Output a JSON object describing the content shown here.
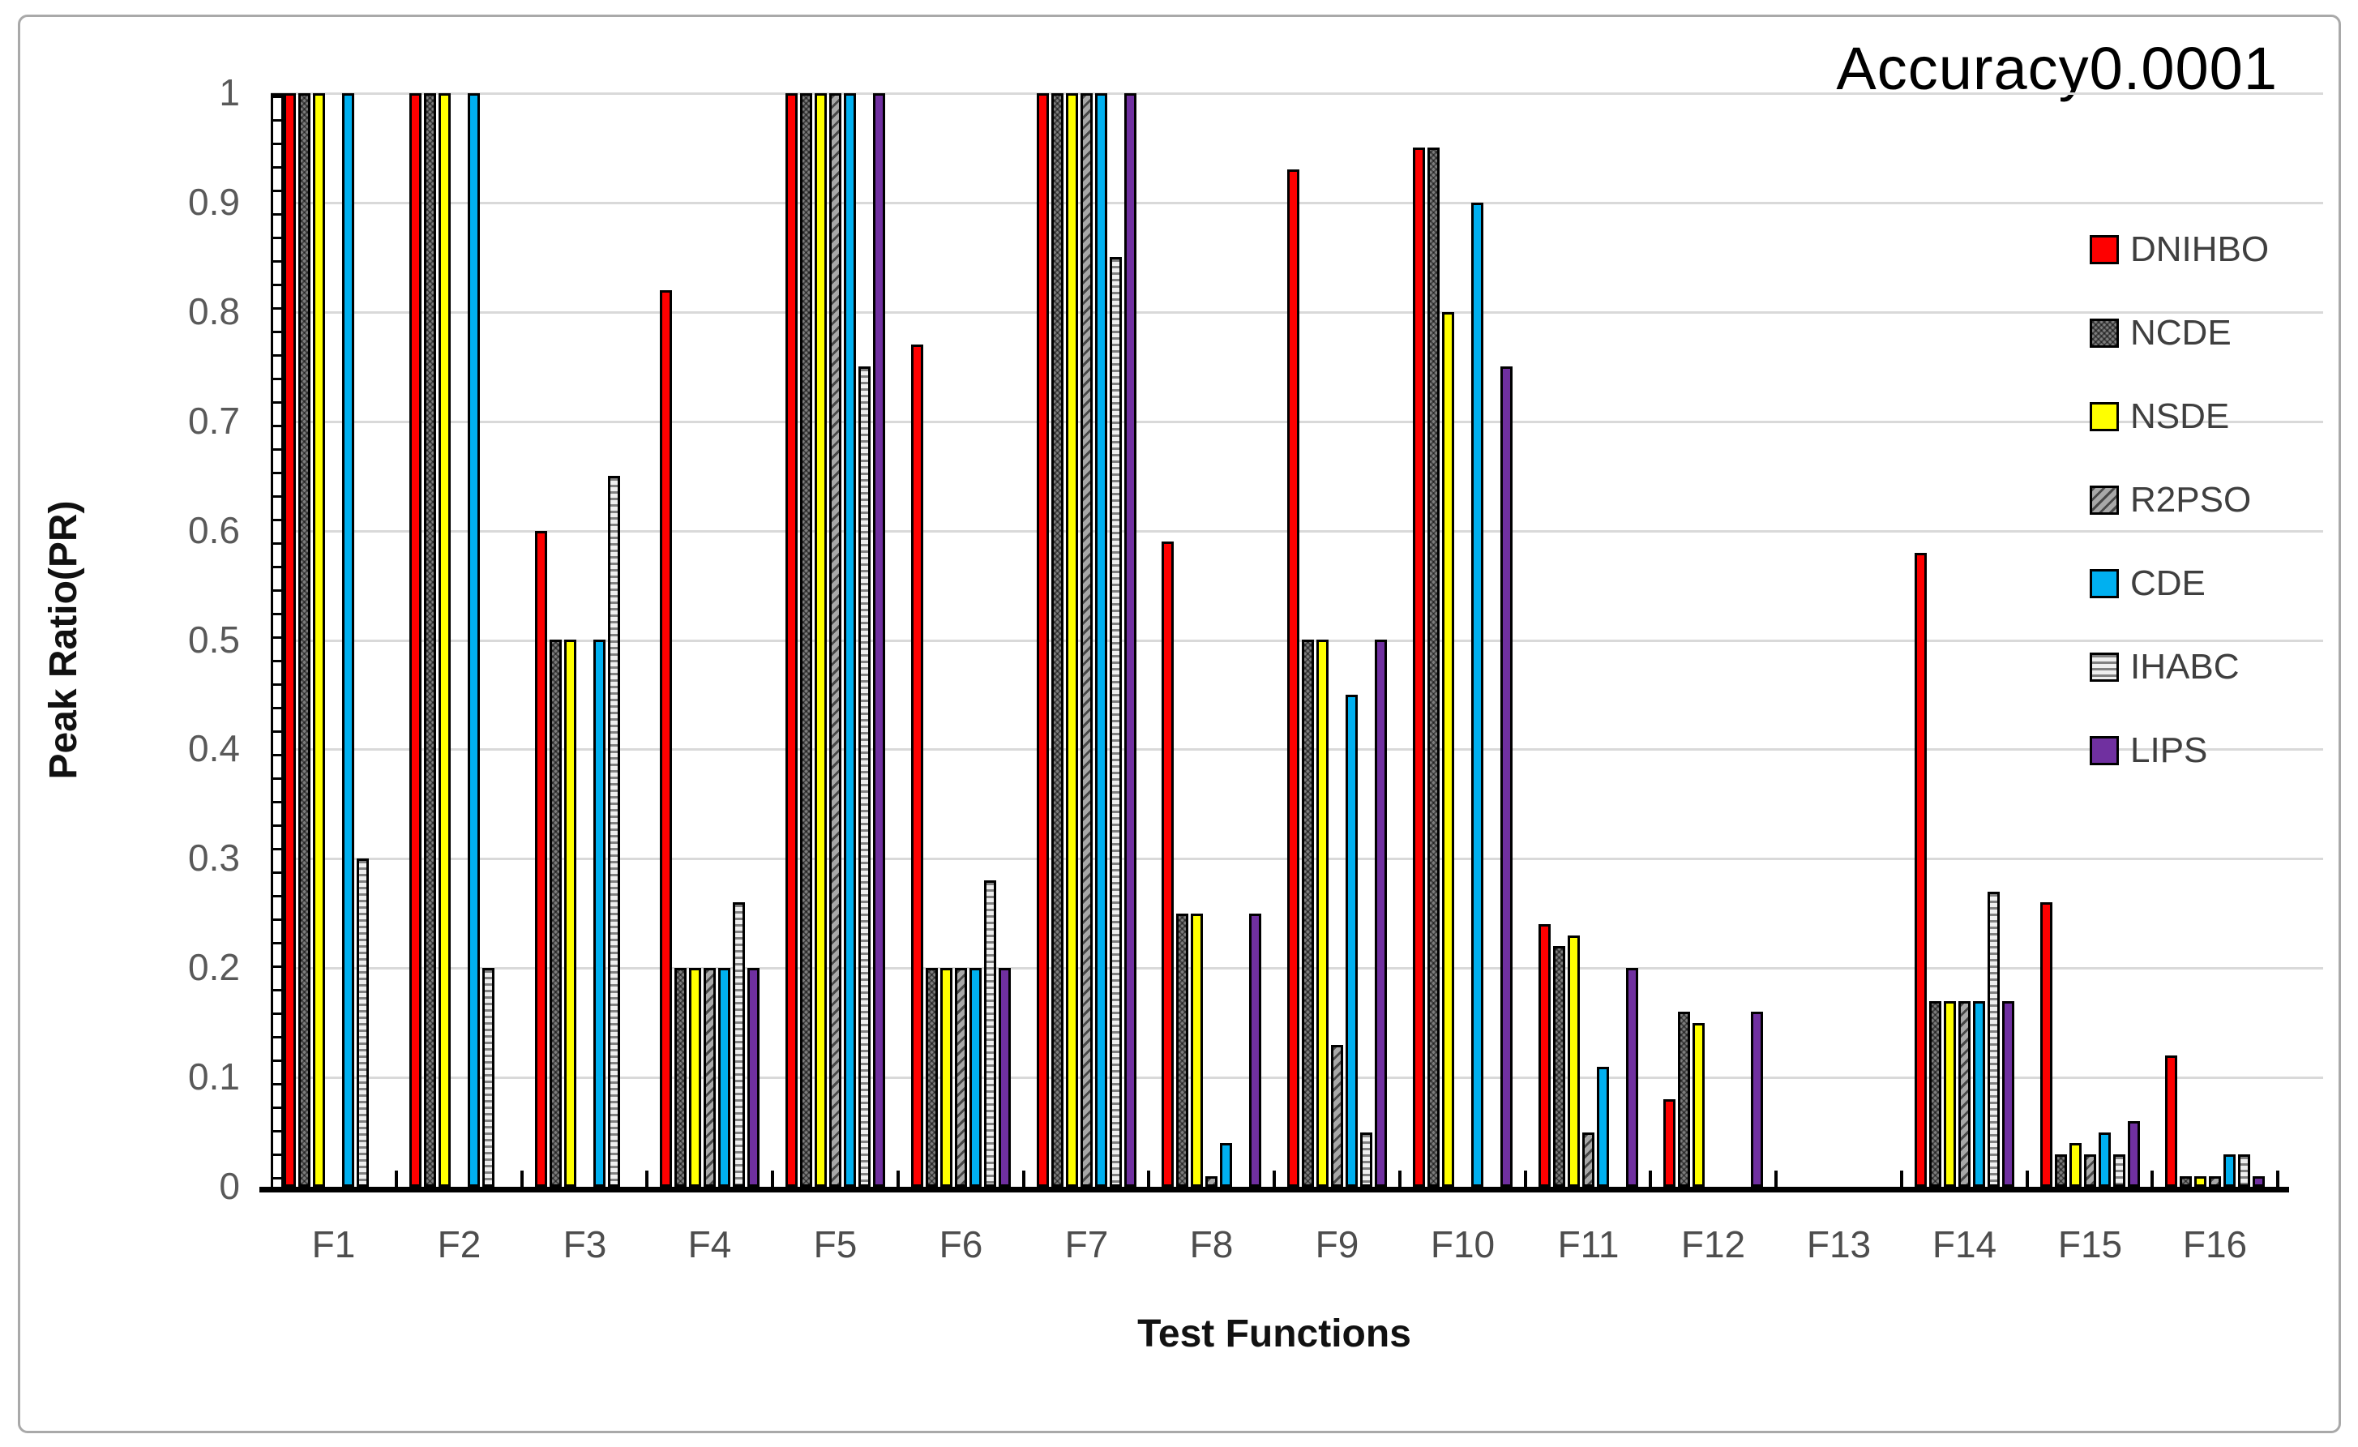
{
  "figure": {
    "title": "Accuracy0.0001"
  },
  "axes": {
    "y_title": "Peak Ratio(PR)",
    "x_title": "Test Functions",
    "y_tick_labels": [
      "1",
      "0.9",
      "0.8",
      "0.7",
      "0.6",
      "0.5",
      "0.4",
      "0.3",
      "0.2",
      "0.1",
      "0"
    ]
  },
  "chart_data": {
    "type": "bar",
    "title": "Accuracy0.0001",
    "xlabel": "Test Functions",
    "ylabel": "Peak Ratio(PR)",
    "ylim": [
      0,
      1
    ],
    "grid": true,
    "legend_position": "right-inside",
    "categories": [
      "F1",
      "F2",
      "F3",
      "F4",
      "F5",
      "F6",
      "F7",
      "F8",
      "F9",
      "F10",
      "F11",
      "F12",
      "F13",
      "F14",
      "F15",
      "F16"
    ],
    "series": [
      {
        "name": "DNIHBO",
        "color": "#fe0000",
        "pattern": "solid",
        "values": [
          1,
          1,
          0.6,
          0.82,
          1,
          0.77,
          1,
          0.59,
          0.93,
          0.95,
          0.24,
          0.08,
          0,
          0.58,
          0.26,
          0.12
        ]
      },
      {
        "name": "NCDE",
        "color": "#7d7d7d",
        "pattern": "check",
        "values": [
          1,
          1,
          0.5,
          0.2,
          1,
          0.2,
          1,
          0.25,
          0.5,
          0.95,
          0.22,
          0.16,
          0,
          0.17,
          0.03,
          0.01
        ]
      },
      {
        "name": "NSDE",
        "color": "#ffff00",
        "pattern": "solid",
        "values": [
          1,
          1,
          0.5,
          0.2,
          1,
          0.2,
          1,
          0.25,
          0.5,
          0.8,
          0.23,
          0.15,
          0,
          0.17,
          0.04,
          0.01
        ]
      },
      {
        "name": "R2PSO",
        "color": "#a8a8a8",
        "pattern": "diagonal",
        "values": [
          0,
          0,
          0,
          0.2,
          1,
          0.2,
          1,
          0.01,
          0.13,
          0,
          0.05,
          0,
          0,
          0.17,
          0.03,
          0.01
        ]
      },
      {
        "name": "CDE",
        "color": "#00b0f0",
        "pattern": "solid",
        "values": [
          1,
          1,
          0.5,
          0.2,
          1,
          0.2,
          1,
          0.04,
          0.45,
          0.9,
          0.11,
          0,
          0,
          0.17,
          0.05,
          0.03
        ]
      },
      {
        "name": "IHABC",
        "color": "#efefef",
        "pattern": "horizontal",
        "values": [
          0.3,
          0.2,
          0.65,
          0.26,
          0.75,
          0.28,
          0.85,
          0,
          0.05,
          0,
          0,
          0,
          0,
          0.27,
          0.03,
          0.03
        ]
      },
      {
        "name": "LIPS",
        "color": "#7030a0",
        "pattern": "solid",
        "values": [
          0,
          0,
          0,
          0.2,
          1,
          0.2,
          1,
          0.25,
          0.5,
          0.75,
          0.2,
          0.16,
          0,
          0.17,
          0.06,
          0.01
        ]
      }
    ]
  }
}
